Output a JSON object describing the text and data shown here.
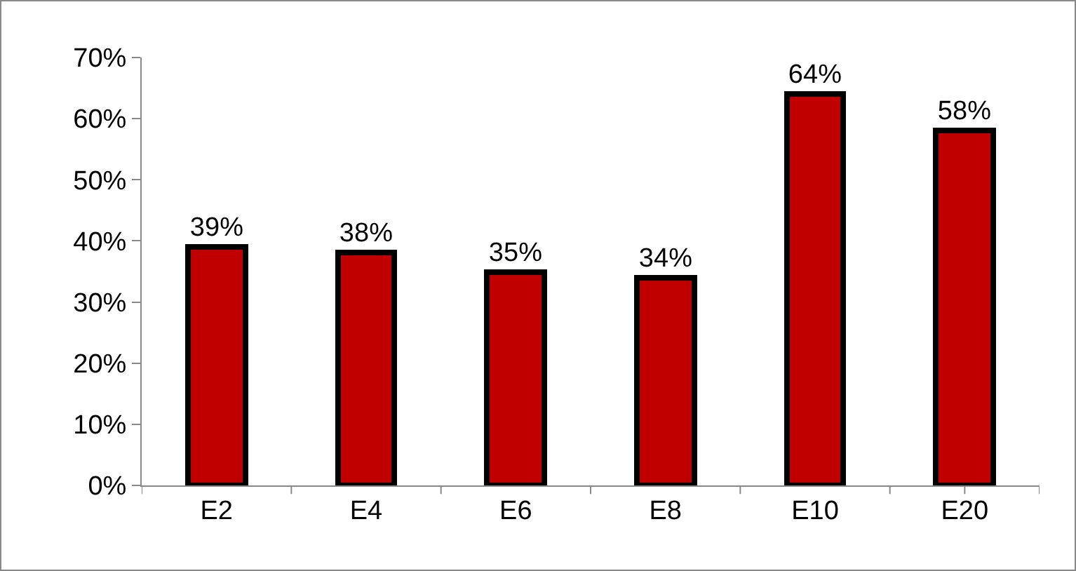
{
  "chart_data": {
    "type": "bar",
    "categories": [
      "E2",
      "E4",
      "E6",
      "E8",
      "E10",
      "E20"
    ],
    "values": [
      39,
      38,
      35,
      34,
      64,
      58
    ],
    "value_labels": [
      "39%",
      "38%",
      "35%",
      "34%",
      "64%",
      "58%"
    ],
    "color": "#c00000",
    "ylim": [
      0,
      70
    ],
    "yticks": [
      {
        "value": 0,
        "label": "0%"
      },
      {
        "value": 10,
        "label": "10%"
      },
      {
        "value": 20,
        "label": "20%"
      },
      {
        "value": 30,
        "label": "30%"
      },
      {
        "value": 40,
        "label": "40%"
      },
      {
        "value": 50,
        "label": "50%"
      },
      {
        "value": 60,
        "label": "60%"
      },
      {
        "value": 70,
        "label": "70%"
      }
    ],
    "grid": false,
    "legend": false
  }
}
